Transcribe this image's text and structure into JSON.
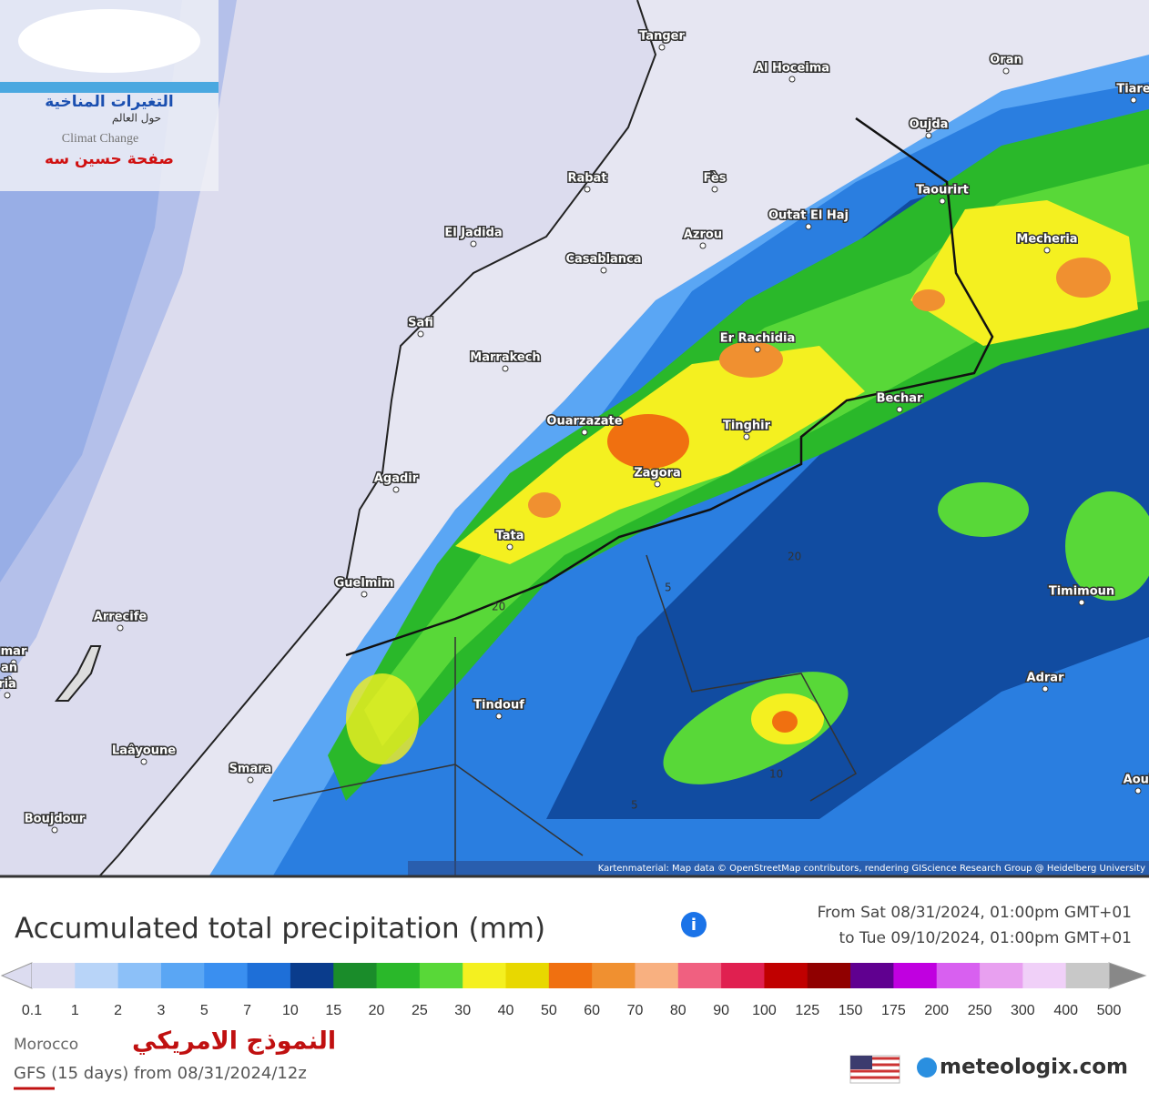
{
  "watermark": {
    "line1": "التغيرات المناخية",
    "line2": "حول العالم",
    "line3": "Climat Change",
    "line4": "صفحة حسين سه"
  },
  "map": {
    "places": [
      "Tanger",
      "Al Hoceima",
      "Oran",
      "Tiare",
      "Oujda",
      "Rabat",
      "Fès",
      "Taourirt",
      "El Jadida",
      "Casablanca",
      "Azrou",
      "Outat El Haj",
      "Mecheria",
      "Safi",
      "Marrakech",
      "Er Rachidia",
      "Bechar",
      "Ouarzazate",
      "Tinghir",
      "Zagora",
      "Agadir",
      "Tata",
      "Guelmim",
      "Timimoun",
      "Arrecife",
      "Tindouf",
      "Adrar",
      "Laâyoune",
      "Smara",
      "Boujdour",
      "Aoul",
      "mar",
      "an",
      "ria"
    ],
    "contours": [
      "20",
      "5",
      "20",
      "5",
      "10"
    ],
    "attribution": "Kartenmaterial: Map data © OpenStreetMap contributors, rendering GIScience Research Group @ Heidelberg University"
  },
  "legend": {
    "title": "Accumulated total precipitation (mm)",
    "period_from": "From Sat 08/31/2024, 01:00pm GMT+01",
    "period_to": "to Tue 09/10/2024, 01:00pm GMT+01",
    "scale": [
      0.1,
      1,
      2,
      3,
      5,
      7,
      10,
      15,
      20,
      25,
      30,
      40,
      50,
      60,
      70,
      80,
      90,
      100,
      125,
      150,
      175,
      200,
      250,
      300,
      400,
      500
    ],
    "colors": [
      "#dcdcf0",
      "#b8d4f8",
      "#8cc0f8",
      "#5aa6f4",
      "#3a8ff0",
      "#1e6fd8",
      "#0a3c8c",
      "#1a8c2a",
      "#2ab82a",
      "#58d838",
      "#f4f020",
      "#e8d800",
      "#f07010",
      "#f09030",
      "#f8b080",
      "#f06080",
      "#e02050",
      "#c00000",
      "#900000",
      "#600090",
      "#c000e0",
      "#d860f0",
      "#e8a0f0",
      "#f0d0f8",
      "#c8c8c8"
    ],
    "region": "Morocco",
    "model_ar": "النموذج الامريكي",
    "model": "GFS (15 days) from 08/31/2024/12z",
    "brand": "meteologix.com"
  }
}
